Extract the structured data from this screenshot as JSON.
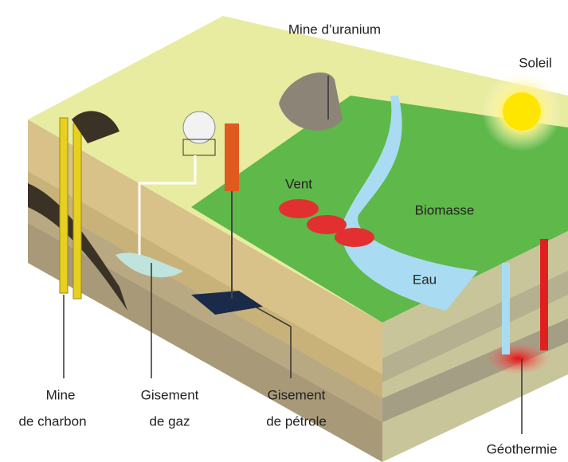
{
  "labels": [
    {
      "lines": [
        "Mine d’uranium"
      ]
    },
    {
      "lines": [
        "Soleil"
      ]
    },
    {
      "lines": [
        "Vent"
      ]
    },
    {
      "lines": [
        "Biomasse"
      ]
    },
    {
      "lines": [
        "Eau"
      ]
    },
    {
      "lines": [
        "Mine",
        "de charbon"
      ]
    },
    {
      "lines": [
        "Gisement",
        "de gaz"
      ]
    },
    {
      "lines": [
        "Gisement",
        "de pétrole"
      ]
    },
    {
      "lines": [
        "Géothermie"
      ]
    }
  ]
}
